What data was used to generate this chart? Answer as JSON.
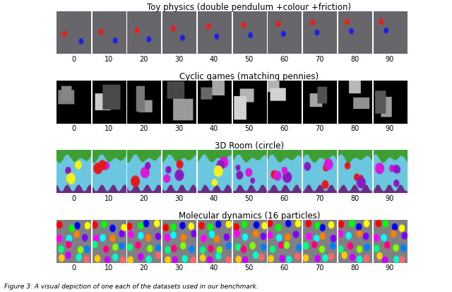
{
  "title1": "Toy physics (double pendulum +colour +friction)",
  "title2": "Cyclic games (matching pennies)",
  "title3": "3D Room (circle)",
  "title4": "Molecular dynamics (16 particles)",
  "caption": "Figure 3: A visual depiction of one each of the datasets used in our benchmark.",
  "tick_labels": [
    0,
    10,
    20,
    30,
    40,
    50,
    60,
    70,
    80,
    90
  ],
  "n_frames": 10,
  "fig_width": 6.4,
  "fig_height": 4.14,
  "title_fontsize": 8.5,
  "tick_fontsize": 7.0,
  "caption_fontsize": 6.5,
  "row1_bg": [
    0.4,
    0.4,
    0.42
  ],
  "row2_bg": [
    0.0,
    0.0,
    0.0
  ],
  "row3_sky": [
    0.42,
    0.78,
    0.88
  ],
  "row3_green": [
    0.25,
    0.62,
    0.2
  ],
  "row3_purple": [
    0.42,
    0.18,
    0.52
  ],
  "row4_bg": [
    0.5,
    0.5,
    0.52
  ],
  "separator_color": "white",
  "separator_lw": 0.8
}
